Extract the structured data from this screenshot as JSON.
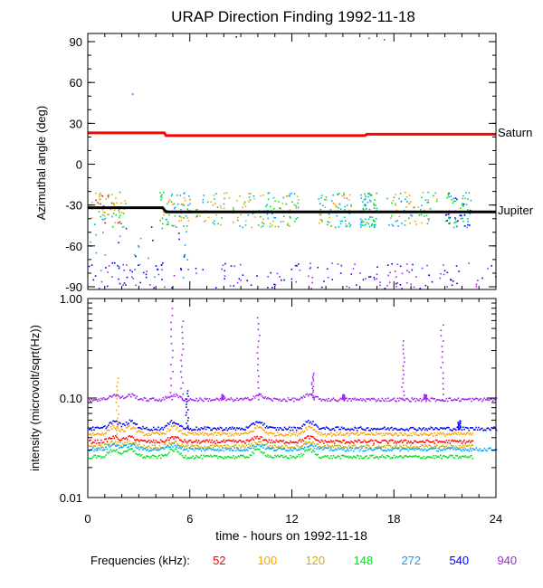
{
  "chart_data": {
    "type": "scatter",
    "title": "URAP Direction Finding  1992-11-18",
    "xlabel": "time - hours on 1992-11-18",
    "xlim": [
      0,
      24
    ],
    "x_ticks": [
      "0",
      "6",
      "12",
      "18",
      "24"
    ],
    "panels": [
      {
        "name": "azimuth",
        "ylabel": "Azimuthal angle (deg)",
        "ylim": [
          -92,
          96
        ],
        "y_ticks": [
          "90",
          "60",
          "30",
          "0",
          "-30",
          "-60",
          "-90"
        ],
        "annotations": [
          "Saturn",
          "Jupiter"
        ],
        "series": [
          {
            "name": "Saturn",
            "color": "#ff0000",
            "points": [
              [
                0,
                23
              ],
              [
                4.5,
                23
              ],
              [
                4.6,
                21
              ],
              [
                16.3,
                21
              ],
              [
                16.4,
                22
              ],
              [
                24,
                22
              ]
            ]
          },
          {
            "name": "Jupiter",
            "color": "#000000",
            "points": [
              [
                0,
                -32
              ],
              [
                4.4,
                -32
              ],
              [
                4.6,
                -35
              ],
              [
                24,
                -35
              ]
            ]
          }
        ]
      },
      {
        "name": "intensity",
        "ylabel": "intensity (microvolt/sqrt(Hz))",
        "scale": "log",
        "ylim": [
          0.01,
          1.0
        ],
        "y_ticks": [
          "1.00",
          "0.10",
          "0.01"
        ],
        "series": [
          {
            "name": "52",
            "color": "#ff0000",
            "baseline": 0.037
          },
          {
            "name": "100",
            "color": "#ffa000",
            "baseline": 0.044
          },
          {
            "name": "120",
            "color": "#d2b000",
            "baseline": 0.033
          },
          {
            "name": "148",
            "color": "#00e020",
            "baseline": 0.026
          },
          {
            "name": "272",
            "color": "#00a8ff",
            "baseline": 0.031
          },
          {
            "name": "540",
            "color": "#0000ee",
            "baseline": 0.05
          },
          {
            "name": "940",
            "color": "#a020f0",
            "baseline": 0.098
          }
        ]
      }
    ]
  },
  "legend": {
    "label": "Frequencies (kHz):",
    "items": [
      {
        "name": "52",
        "color": "#ff0000"
      },
      {
        "name": "100",
        "color": "#ffa000"
      },
      {
        "name": "120",
        "color": "#d2b000"
      },
      {
        "name": "148",
        "color": "#00e020"
      },
      {
        "name": "272",
        "color": "#00a8ff"
      },
      {
        "name": "540",
        "color": "#0000ee"
      },
      {
        "name": "940",
        "color": "#a020f0"
      }
    ]
  }
}
